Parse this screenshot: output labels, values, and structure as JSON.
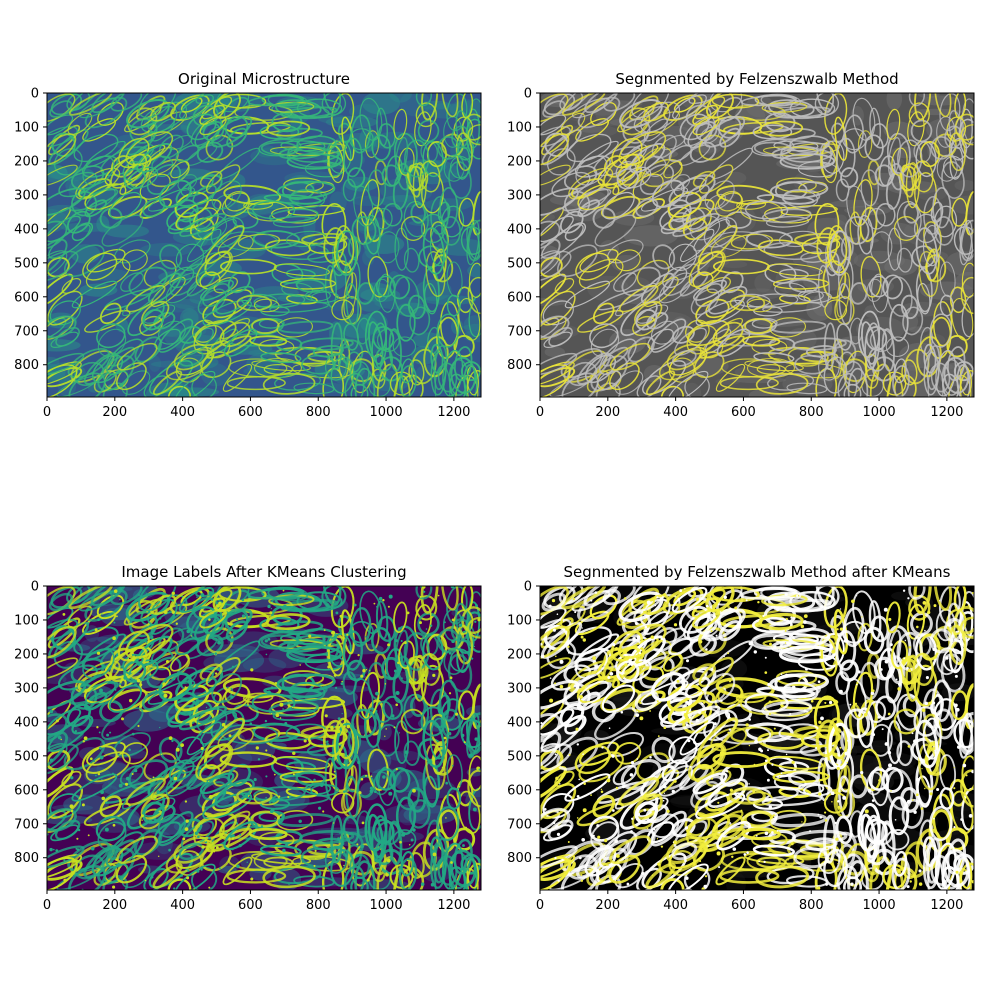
{
  "chart_data": [
    {
      "type": "heatmap",
      "title": "Original Microstructure",
      "xlabel": "",
      "ylabel": "",
      "xlim": [
        0,
        1280
      ],
      "ylim": [
        895,
        0
      ],
      "x_ticks": [
        0,
        200,
        400,
        600,
        800,
        1000,
        1200
      ],
      "y_ticks": [
        0,
        100,
        200,
        300,
        400,
        500,
        600,
        700,
        800
      ],
      "colormap": "viridis",
      "colors": {
        "background": "#33568c",
        "mid": "#2a8b8a",
        "edges": "#35b779",
        "highlight": "#b5de2b"
      }
    },
    {
      "type": "heatmap",
      "title": "Segnmented by Felzenszwalb Method",
      "xlabel": "",
      "ylabel": "",
      "xlim": [
        0,
        1280
      ],
      "ylim": [
        895,
        0
      ],
      "x_ticks": [
        0,
        200,
        400,
        600,
        800,
        1000,
        1200
      ],
      "y_ticks": [
        0,
        100,
        200,
        300,
        400,
        500,
        600,
        700,
        800
      ],
      "colormap": "gray with boundaries",
      "colors": {
        "background": "#555555",
        "mid": "#6f6f6f",
        "edges": "#bdbdbd",
        "highlight": "#e8e23a"
      }
    },
    {
      "type": "heatmap",
      "title": "Image Labels After KMeans Clustering",
      "xlabel": "",
      "ylabel": "",
      "xlim": [
        0,
        1280
      ],
      "ylim": [
        895,
        0
      ],
      "x_ticks": [
        0,
        200,
        400,
        600,
        800,
        1000,
        1200
      ],
      "y_ticks": [
        0,
        100,
        200,
        300,
        400,
        500,
        600,
        700,
        800
      ],
      "colormap": "viridis",
      "colors": {
        "background": "#440154",
        "mid": "#2c728e",
        "edges": "#22a884",
        "highlight": "#c8e020"
      }
    },
    {
      "type": "heatmap",
      "title": "Segnmented by Felzenszwalb Method after KMeans",
      "xlabel": "",
      "ylabel": "",
      "xlim": [
        0,
        1280
      ],
      "ylim": [
        895,
        0
      ],
      "x_ticks": [
        0,
        200,
        400,
        600,
        800,
        1000,
        1200
      ],
      "y_ticks": [
        0,
        100,
        200,
        300,
        400,
        500,
        600,
        700,
        800
      ],
      "colormap": "binary with boundaries",
      "colors": {
        "background": "#000000",
        "mid": "#1a1a1a",
        "edges": "#ffffff",
        "highlight": "#f2ee3c"
      }
    }
  ]
}
